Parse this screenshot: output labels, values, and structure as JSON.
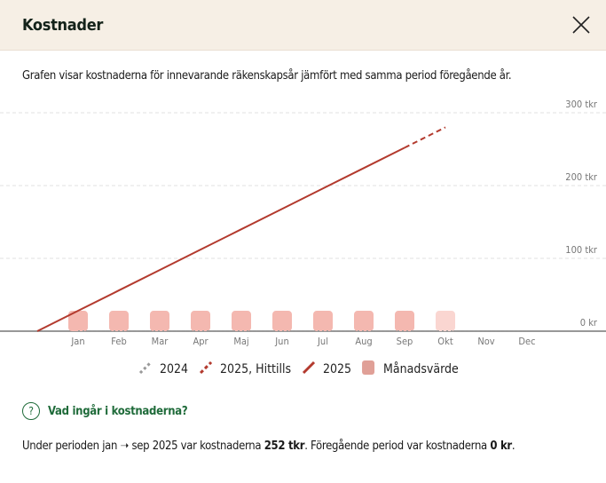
{
  "header": {
    "title": "Kostnader",
    "close_icon": "close-icon"
  },
  "intro": "Grafen visar kostnaderna för innevarande räkenskapsår jämfört med samma period föregående år.",
  "chart_data": {
    "type": "line",
    "categories": [
      "Jan",
      "Feb",
      "Mar",
      "Apr",
      "Maj",
      "Jun",
      "Jul",
      "Aug",
      "Sep",
      "Okt",
      "Nov",
      "Dec"
    ],
    "y_ticks": [
      "0 kr",
      "100 tkr",
      "200 tkr",
      "300 tkr"
    ],
    "ylim": [
      0,
      300
    ],
    "grid": true,
    "legend_position": "bottom",
    "series": [
      {
        "name": "2024",
        "type": "line",
        "style": "dotted",
        "color": "#999999",
        "values": [
          0,
          0,
          0,
          0,
          0,
          0,
          0,
          0,
          0,
          0,
          0,
          0
        ]
      },
      {
        "name": "2025, Hittills",
        "type": "line",
        "style": "dashed",
        "color": "#b33a2e",
        "values": [
          null,
          null,
          null,
          null,
          null,
          null,
          null,
          null,
          252,
          280,
          null,
          null
        ]
      },
      {
        "name": "2025",
        "type": "line",
        "style": "solid",
        "color": "#b33a2e",
        "start": 0,
        "values": [
          28,
          56,
          84,
          112,
          140,
          168,
          196,
          224,
          252,
          null,
          null,
          null
        ]
      },
      {
        "name": "Månadsvärde",
        "type": "bar",
        "color": "#f4b8b0",
        "values": [
          28,
          28,
          28,
          28,
          28,
          28,
          28,
          28,
          28,
          28,
          null,
          null
        ],
        "forecast_index": 9,
        "forecast_color": "#fad6d1"
      }
    ]
  },
  "help": {
    "label": "Vad ingår i kostnaderna?",
    "icon": "question-circle-icon"
  },
  "summary": {
    "pre": "Under perioden jan ➝ sep 2025 var kostnaderna ",
    "value": "252 tkr",
    "mid": ". Föregående period var kostnaderna ",
    "prev": "0 kr",
    "end": "."
  }
}
